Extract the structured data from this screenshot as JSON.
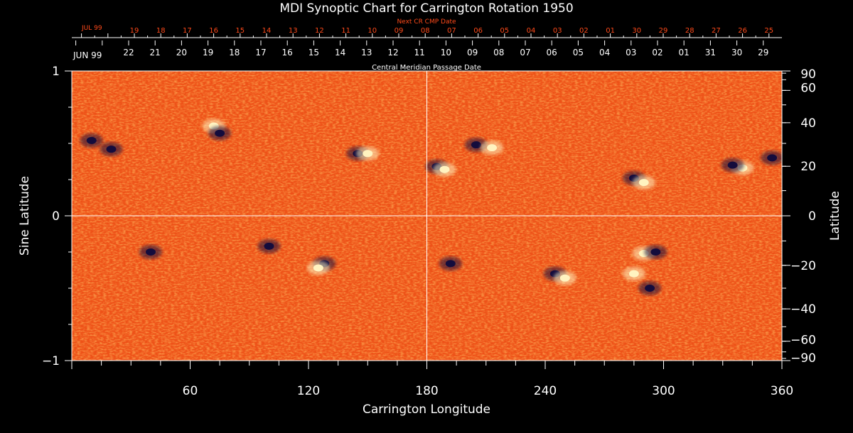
{
  "chart_data": {
    "type": "heatmap",
    "title": "MDI Synoptic Chart for Carrington Rotation 1950",
    "xlabel": "Carrington Longitude",
    "ylabel_left": "Sine Latitude",
    "ylabel_right": "Latitude",
    "xlim": [
      0,
      360
    ],
    "ylim": [
      -1,
      1
    ],
    "x_ticks": [
      60,
      120,
      180,
      240,
      300,
      360
    ],
    "y_ticks_left": [
      {
        "value": 1,
        "label": "1"
      },
      {
        "value": 0,
        "label": "0"
      },
      {
        "value": -1,
        "label": "−1"
      }
    ],
    "y_ticks_right_deg": [
      {
        "deg": 90,
        "label": "90"
      },
      {
        "deg": 60,
        "label": "60"
      },
      {
        "deg": 40,
        "label": "40"
      },
      {
        "deg": 20,
        "label": "20"
      },
      {
        "deg": 0,
        "label": "0"
      },
      {
        "deg": -20,
        "label": "−20"
      },
      {
        "deg": -40,
        "label": "−40"
      },
      {
        "deg": -60,
        "label": "−60"
      },
      {
        "deg": -90,
        "label": "−90"
      }
    ],
    "top_axis_red": {
      "title": "Next CR CMP Date",
      "month_label": "JUL 99",
      "labels": [
        "19",
        "18",
        "17",
        "16",
        "15",
        "14",
        "13",
        "12",
        "11",
        "10",
        "09",
        "08",
        "07",
        "06",
        "05",
        "04",
        "03",
        "02",
        "01",
        "30",
        "29",
        "28",
        "27",
        "26",
        "25"
      ],
      "color": "#ff4a1a"
    },
    "top_axis_white": {
      "title": "Central Meridian Passage Date",
      "month_label": "JUN 99",
      "labels": [
        "22",
        "21",
        "20",
        "19",
        "18",
        "17",
        "16",
        "15",
        "14",
        "13",
        "12",
        "11",
        "10",
        "09",
        "08",
        "07",
        "06",
        "05",
        "04",
        "03",
        "02",
        "01",
        "31",
        "30",
        "29"
      ]
    },
    "colors": {
      "background_field": "#f25a1c",
      "positive_polarity": "#fff3c0",
      "negative_polarity": "#140c3c",
      "axes": "#ffffff"
    },
    "crosshair": {
      "x": 180,
      "y": 0
    },
    "active_regions": [
      {
        "lon": 72,
        "sinlat": 0.62,
        "pos": true
      },
      {
        "lon": 75,
        "sinlat": 0.57,
        "pos": false
      },
      {
        "lon": 10,
        "sinlat": 0.52,
        "pos": false
      },
      {
        "lon": 20,
        "sinlat": 0.46,
        "pos": false
      },
      {
        "lon": 145,
        "sinlat": 0.43,
        "pos": false
      },
      {
        "lon": 150,
        "sinlat": 0.43,
        "pos": true
      },
      {
        "lon": 185,
        "sinlat": 0.34,
        "pos": false
      },
      {
        "lon": 189,
        "sinlat": 0.32,
        "pos": true
      },
      {
        "lon": 205,
        "sinlat": 0.49,
        "pos": false
      },
      {
        "lon": 213,
        "sinlat": 0.47,
        "pos": true
      },
      {
        "lon": 285,
        "sinlat": 0.26,
        "pos": false
      },
      {
        "lon": 290,
        "sinlat": 0.23,
        "pos": true
      },
      {
        "lon": 340,
        "sinlat": 0.33,
        "pos": true
      },
      {
        "lon": 335,
        "sinlat": 0.35,
        "pos": false
      },
      {
        "lon": 355,
        "sinlat": 0.4,
        "pos": false
      },
      {
        "lon": 100,
        "sinlat": -0.21,
        "pos": false
      },
      {
        "lon": 128,
        "sinlat": -0.33,
        "pos": false
      },
      {
        "lon": 125,
        "sinlat": -0.36,
        "pos": true
      },
      {
        "lon": 40,
        "sinlat": -0.25,
        "pos": false
      },
      {
        "lon": 192,
        "sinlat": -0.33,
        "pos": false
      },
      {
        "lon": 245,
        "sinlat": -0.4,
        "pos": false
      },
      {
        "lon": 250,
        "sinlat": -0.43,
        "pos": true
      },
      {
        "lon": 290,
        "sinlat": -0.26,
        "pos": true
      },
      {
        "lon": 296,
        "sinlat": -0.25,
        "pos": false
      },
      {
        "lon": 293,
        "sinlat": -0.5,
        "pos": false
      },
      {
        "lon": 285,
        "sinlat": -0.4,
        "pos": true
      }
    ]
  }
}
